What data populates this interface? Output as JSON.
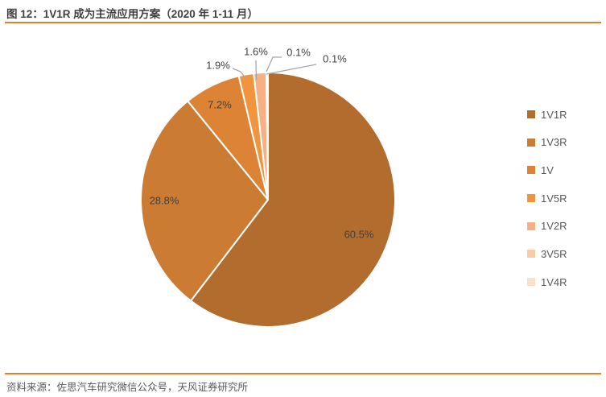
{
  "title": "图 12：1V1R 成为主流应用方案（2020 年 1-11 月）",
  "source": "资料来源：佐思汽车研究微信公众号，天风证券研究所",
  "accent_color": "#eb7c28",
  "chart_data": {
    "type": "pie",
    "title": "1V1R 成为主流应用方案（2020 年 1-11 月）",
    "categories": [
      "1V1R",
      "1V3R",
      "1V",
      "1V5R",
      "1V2R",
      "3V5R",
      "1V4R"
    ],
    "values": [
      60.5,
      28.8,
      7.2,
      1.9,
      1.6,
      0.1,
      0.1
    ],
    "labels": [
      "60.5%",
      "28.8%",
      "7.2%",
      "1.9%",
      "1.6%",
      "0.1%",
      "0.1%"
    ],
    "colors": [
      "#B26C2D",
      "#CC7B33",
      "#DD8335",
      "#F1943E",
      "#F6B083",
      "#F9CBA6",
      "#FBE0CD"
    ],
    "legend_position": "right",
    "start_angle_deg": 0,
    "direction": "clockwise",
    "slice_border_color": "#FFFFFF",
    "label_color": "#404040",
    "leader_line_color": "#A6A6A6"
  }
}
